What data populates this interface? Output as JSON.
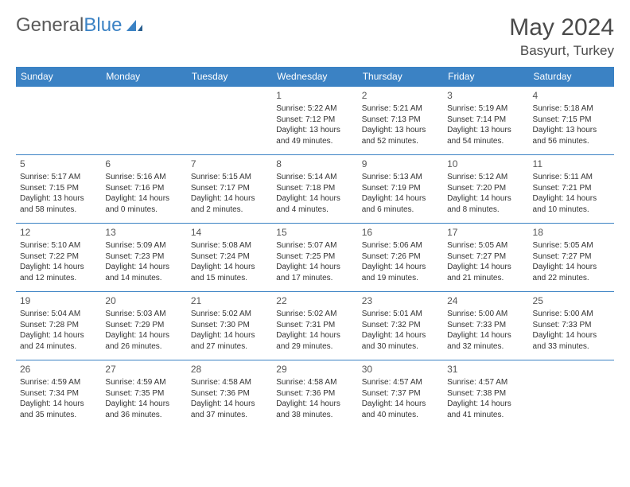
{
  "logo": {
    "general": "General",
    "blue": "Blue"
  },
  "title": {
    "month": "May 2024",
    "location": "Basyurt, Turkey"
  },
  "colors": {
    "header_bg": "#3b82c4",
    "header_fg": "#ffffff",
    "border": "#3b82c4",
    "shaded_bg": "#ececec",
    "text": "#333333",
    "title_color": "#4a4a4a"
  },
  "dow": [
    "Sunday",
    "Monday",
    "Tuesday",
    "Wednesday",
    "Thursday",
    "Friday",
    "Saturday"
  ],
  "weeks": [
    [
      null,
      null,
      null,
      {
        "n": "1",
        "sr": "Sunrise: 5:22 AM",
        "ss": "Sunset: 7:12 PM",
        "dl": "Daylight: 13 hours and 49 minutes.",
        "sh": false
      },
      {
        "n": "2",
        "sr": "Sunrise: 5:21 AM",
        "ss": "Sunset: 7:13 PM",
        "dl": "Daylight: 13 hours and 52 minutes.",
        "sh": false
      },
      {
        "n": "3",
        "sr": "Sunrise: 5:19 AM",
        "ss": "Sunset: 7:14 PM",
        "dl": "Daylight: 13 hours and 54 minutes.",
        "sh": false
      },
      {
        "n": "4",
        "sr": "Sunrise: 5:18 AM",
        "ss": "Sunset: 7:15 PM",
        "dl": "Daylight: 13 hours and 56 minutes.",
        "sh": true
      }
    ],
    [
      {
        "n": "5",
        "sr": "Sunrise: 5:17 AM",
        "ss": "Sunset: 7:15 PM",
        "dl": "Daylight: 13 hours and 58 minutes.",
        "sh": true
      },
      {
        "n": "6",
        "sr": "Sunrise: 5:16 AM",
        "ss": "Sunset: 7:16 PM",
        "dl": "Daylight: 14 hours and 0 minutes.",
        "sh": false
      },
      {
        "n": "7",
        "sr": "Sunrise: 5:15 AM",
        "ss": "Sunset: 7:17 PM",
        "dl": "Daylight: 14 hours and 2 minutes.",
        "sh": false
      },
      {
        "n": "8",
        "sr": "Sunrise: 5:14 AM",
        "ss": "Sunset: 7:18 PM",
        "dl": "Daylight: 14 hours and 4 minutes.",
        "sh": false
      },
      {
        "n": "9",
        "sr": "Sunrise: 5:13 AM",
        "ss": "Sunset: 7:19 PM",
        "dl": "Daylight: 14 hours and 6 minutes.",
        "sh": false
      },
      {
        "n": "10",
        "sr": "Sunrise: 5:12 AM",
        "ss": "Sunset: 7:20 PM",
        "dl": "Daylight: 14 hours and 8 minutes.",
        "sh": false
      },
      {
        "n": "11",
        "sr": "Sunrise: 5:11 AM",
        "ss": "Sunset: 7:21 PM",
        "dl": "Daylight: 14 hours and 10 minutes.",
        "sh": true
      }
    ],
    [
      {
        "n": "12",
        "sr": "Sunrise: 5:10 AM",
        "ss": "Sunset: 7:22 PM",
        "dl": "Daylight: 14 hours and 12 minutes.",
        "sh": true
      },
      {
        "n": "13",
        "sr": "Sunrise: 5:09 AM",
        "ss": "Sunset: 7:23 PM",
        "dl": "Daylight: 14 hours and 14 minutes.",
        "sh": false
      },
      {
        "n": "14",
        "sr": "Sunrise: 5:08 AM",
        "ss": "Sunset: 7:24 PM",
        "dl": "Daylight: 14 hours and 15 minutes.",
        "sh": false
      },
      {
        "n": "15",
        "sr": "Sunrise: 5:07 AM",
        "ss": "Sunset: 7:25 PM",
        "dl": "Daylight: 14 hours and 17 minutes.",
        "sh": false
      },
      {
        "n": "16",
        "sr": "Sunrise: 5:06 AM",
        "ss": "Sunset: 7:26 PM",
        "dl": "Daylight: 14 hours and 19 minutes.",
        "sh": false
      },
      {
        "n": "17",
        "sr": "Sunrise: 5:05 AM",
        "ss": "Sunset: 7:27 PM",
        "dl": "Daylight: 14 hours and 21 minutes.",
        "sh": false
      },
      {
        "n": "18",
        "sr": "Sunrise: 5:05 AM",
        "ss": "Sunset: 7:27 PM",
        "dl": "Daylight: 14 hours and 22 minutes.",
        "sh": true
      }
    ],
    [
      {
        "n": "19",
        "sr": "Sunrise: 5:04 AM",
        "ss": "Sunset: 7:28 PM",
        "dl": "Daylight: 14 hours and 24 minutes.",
        "sh": true
      },
      {
        "n": "20",
        "sr": "Sunrise: 5:03 AM",
        "ss": "Sunset: 7:29 PM",
        "dl": "Daylight: 14 hours and 26 minutes.",
        "sh": false
      },
      {
        "n": "21",
        "sr": "Sunrise: 5:02 AM",
        "ss": "Sunset: 7:30 PM",
        "dl": "Daylight: 14 hours and 27 minutes.",
        "sh": false
      },
      {
        "n": "22",
        "sr": "Sunrise: 5:02 AM",
        "ss": "Sunset: 7:31 PM",
        "dl": "Daylight: 14 hours and 29 minutes.",
        "sh": false
      },
      {
        "n": "23",
        "sr": "Sunrise: 5:01 AM",
        "ss": "Sunset: 7:32 PM",
        "dl": "Daylight: 14 hours and 30 minutes.",
        "sh": false
      },
      {
        "n": "24",
        "sr": "Sunrise: 5:00 AM",
        "ss": "Sunset: 7:33 PM",
        "dl": "Daylight: 14 hours and 32 minutes.",
        "sh": false
      },
      {
        "n": "25",
        "sr": "Sunrise: 5:00 AM",
        "ss": "Sunset: 7:33 PM",
        "dl": "Daylight: 14 hours and 33 minutes.",
        "sh": true
      }
    ],
    [
      {
        "n": "26",
        "sr": "Sunrise: 4:59 AM",
        "ss": "Sunset: 7:34 PM",
        "dl": "Daylight: 14 hours and 35 minutes.",
        "sh": true
      },
      {
        "n": "27",
        "sr": "Sunrise: 4:59 AM",
        "ss": "Sunset: 7:35 PM",
        "dl": "Daylight: 14 hours and 36 minutes.",
        "sh": false
      },
      {
        "n": "28",
        "sr": "Sunrise: 4:58 AM",
        "ss": "Sunset: 7:36 PM",
        "dl": "Daylight: 14 hours and 37 minutes.",
        "sh": false
      },
      {
        "n": "29",
        "sr": "Sunrise: 4:58 AM",
        "ss": "Sunset: 7:36 PM",
        "dl": "Daylight: 14 hours and 38 minutes.",
        "sh": false
      },
      {
        "n": "30",
        "sr": "Sunrise: 4:57 AM",
        "ss": "Sunset: 7:37 PM",
        "dl": "Daylight: 14 hours and 40 minutes.",
        "sh": false
      },
      {
        "n": "31",
        "sr": "Sunrise: 4:57 AM",
        "ss": "Sunset: 7:38 PM",
        "dl": "Daylight: 14 hours and 41 minutes.",
        "sh": false
      },
      null
    ]
  ]
}
